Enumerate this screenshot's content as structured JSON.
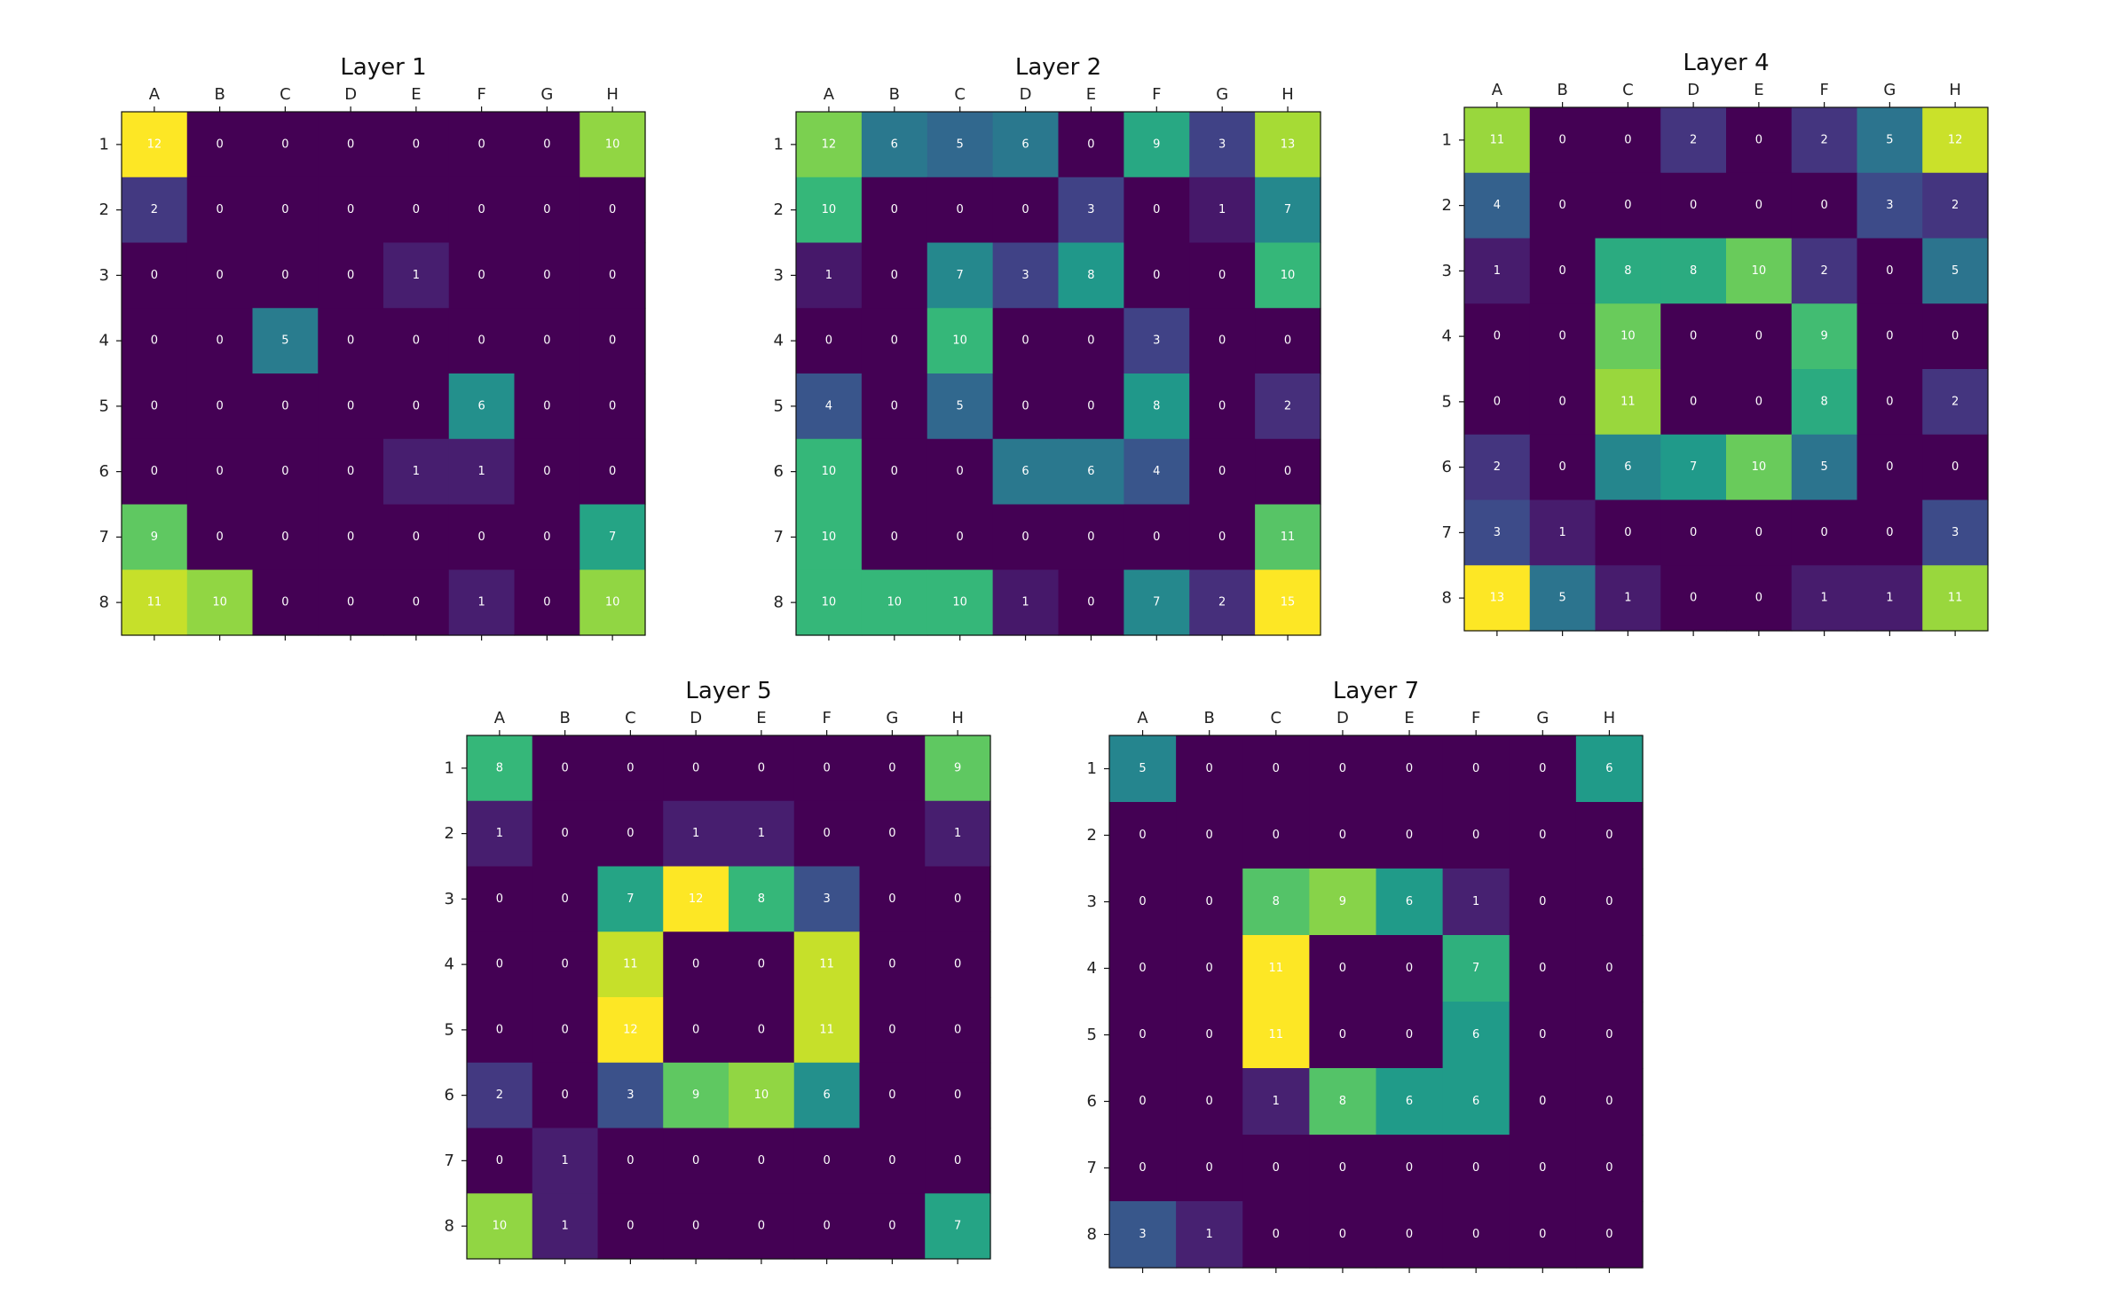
{
  "chart_data": [
    {
      "type": "heatmap",
      "title": "Layer 1",
      "x_categories": [
        "A",
        "B",
        "C",
        "D",
        "E",
        "F",
        "G",
        "H"
      ],
      "y_categories": [
        "1",
        "2",
        "3",
        "4",
        "5",
        "6",
        "7",
        "8"
      ],
      "values": [
        [
          12,
          0,
          0,
          0,
          0,
          0,
          0,
          10
        ],
        [
          2,
          0,
          0,
          0,
          0,
          0,
          0,
          0
        ],
        [
          0,
          0,
          0,
          0,
          1,
          0,
          0,
          0
        ],
        [
          0,
          0,
          5,
          0,
          0,
          0,
          0,
          0
        ],
        [
          0,
          0,
          0,
          0,
          0,
          6,
          0,
          0
        ],
        [
          0,
          0,
          0,
          0,
          1,
          1,
          0,
          0
        ],
        [
          9,
          0,
          0,
          0,
          0,
          0,
          0,
          7
        ],
        [
          11,
          10,
          0,
          0,
          0,
          1,
          0,
          10
        ]
      ],
      "colormap": "viridis",
      "grid": false
    },
    {
      "type": "heatmap",
      "title": "Layer 2",
      "x_categories": [
        "A",
        "B",
        "C",
        "D",
        "E",
        "F",
        "G",
        "H"
      ],
      "y_categories": [
        "1",
        "2",
        "3",
        "4",
        "5",
        "6",
        "7",
        "8"
      ],
      "values": [
        [
          12,
          6,
          5,
          6,
          0,
          9,
          3,
          13
        ],
        [
          10,
          0,
          0,
          0,
          3,
          0,
          1,
          7
        ],
        [
          1,
          0,
          7,
          3,
          8,
          0,
          0,
          10
        ],
        [
          0,
          0,
          10,
          0,
          0,
          3,
          0,
          0
        ],
        [
          4,
          0,
          5,
          0,
          0,
          8,
          0,
          2
        ],
        [
          10,
          0,
          0,
          6,
          6,
          4,
          0,
          0
        ],
        [
          10,
          0,
          0,
          0,
          0,
          0,
          0,
          11
        ],
        [
          10,
          10,
          10,
          1,
          0,
          7,
          2,
          15
        ]
      ],
      "colormap": "viridis",
      "grid": false
    },
    {
      "type": "heatmap",
      "title": "Layer 4",
      "x_categories": [
        "A",
        "B",
        "C",
        "D",
        "E",
        "F",
        "G",
        "H"
      ],
      "y_categories": [
        "1",
        "2",
        "3",
        "4",
        "5",
        "6",
        "7",
        "8"
      ],
      "values": [
        [
          11,
          0,
          0,
          2,
          0,
          2,
          5,
          12
        ],
        [
          4,
          0,
          0,
          0,
          0,
          0,
          3,
          2
        ],
        [
          1,
          0,
          8,
          8,
          10,
          2,
          0,
          5
        ],
        [
          0,
          0,
          10,
          0,
          0,
          9,
          0,
          0
        ],
        [
          0,
          0,
          11,
          0,
          0,
          8,
          0,
          2
        ],
        [
          2,
          0,
          6,
          7,
          10,
          5,
          0,
          0
        ],
        [
          3,
          1,
          0,
          0,
          0,
          0,
          0,
          3
        ],
        [
          13,
          5,
          1,
          0,
          0,
          1,
          1,
          11
        ]
      ],
      "colormap": "viridis",
      "grid": false
    },
    {
      "type": "heatmap",
      "title": "Layer 5",
      "x_categories": [
        "A",
        "B",
        "C",
        "D",
        "E",
        "F",
        "G",
        "H"
      ],
      "y_categories": [
        "1",
        "2",
        "3",
        "4",
        "5",
        "6",
        "7",
        "8"
      ],
      "values": [
        [
          8,
          0,
          0,
          0,
          0,
          0,
          0,
          9
        ],
        [
          1,
          0,
          0,
          1,
          1,
          0,
          0,
          1
        ],
        [
          0,
          0,
          7,
          12,
          8,
          3,
          0,
          0
        ],
        [
          0,
          0,
          11,
          0,
          0,
          11,
          0,
          0
        ],
        [
          0,
          0,
          12,
          0,
          0,
          11,
          0,
          0
        ],
        [
          2,
          0,
          3,
          9,
          10,
          6,
          0,
          0
        ],
        [
          0,
          1,
          0,
          0,
          0,
          0,
          0,
          0
        ],
        [
          10,
          1,
          0,
          0,
          0,
          0,
          0,
          7
        ]
      ],
      "colormap": "viridis",
      "grid": false
    },
    {
      "type": "heatmap",
      "title": "Layer 7",
      "x_categories": [
        "A",
        "B",
        "C",
        "D",
        "E",
        "F",
        "G",
        "H"
      ],
      "y_categories": [
        "1",
        "2",
        "3",
        "4",
        "5",
        "6",
        "7",
        "8"
      ],
      "values": [
        [
          5,
          0,
          0,
          0,
          0,
          0,
          0,
          6
        ],
        [
          0,
          0,
          0,
          0,
          0,
          0,
          0,
          0
        ],
        [
          0,
          0,
          8,
          9,
          6,
          1,
          0,
          0
        ],
        [
          0,
          0,
          11,
          0,
          0,
          7,
          0,
          0
        ],
        [
          0,
          0,
          11,
          0,
          0,
          6,
          0,
          0
        ],
        [
          0,
          0,
          1,
          8,
          6,
          6,
          0,
          0
        ],
        [
          0,
          0,
          0,
          0,
          0,
          0,
          0,
          0
        ],
        [
          3,
          1,
          0,
          0,
          0,
          0,
          0,
          0
        ]
      ],
      "colormap": "viridis",
      "grid": false
    }
  ]
}
